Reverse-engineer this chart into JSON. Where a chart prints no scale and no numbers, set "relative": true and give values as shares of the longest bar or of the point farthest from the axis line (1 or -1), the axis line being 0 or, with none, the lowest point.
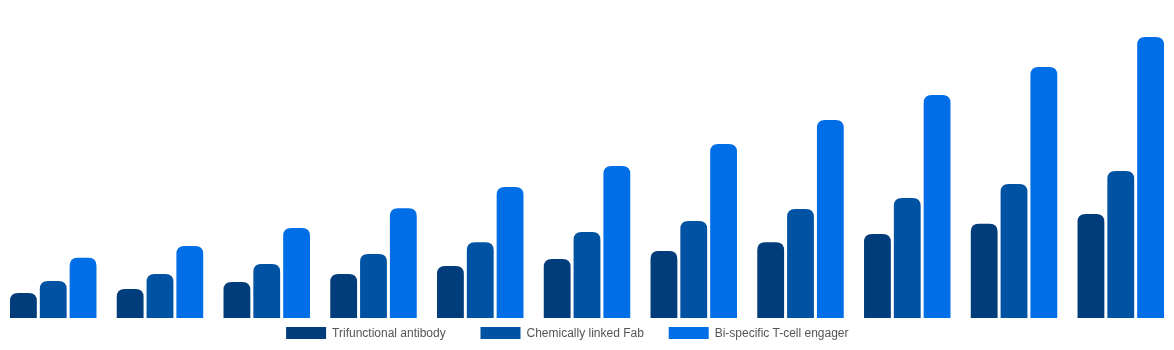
{
  "chart_data": {
    "type": "bar",
    "relative": true,
    "categories": [
      null,
      null,
      null,
      null,
      null,
      null,
      null,
      null,
      null,
      null,
      null
    ],
    "legend": "bottom",
    "series": [
      {
        "name": "Trifunctional antibody",
        "color": "#003d7a",
        "values": [
          0.089,
          0.103,
          0.128,
          0.157,
          0.185,
          0.21,
          0.238,
          0.27,
          0.299,
          0.335,
          0.37
        ]
      },
      {
        "name": "Chemically linked Fab",
        "color": "#0052a3",
        "values": [
          0.132,
          0.157,
          0.192,
          0.228,
          0.27,
          0.306,
          0.345,
          0.388,
          0.427,
          0.477,
          0.523
        ]
      },
      {
        "name": "Bi-specific T-cell engager",
        "color": "#006ee6",
        "values": [
          0.214,
          0.256,
          0.32,
          0.391,
          0.466,
          0.541,
          0.619,
          0.705,
          0.794,
          0.893,
          1
        ]
      }
    ]
  }
}
